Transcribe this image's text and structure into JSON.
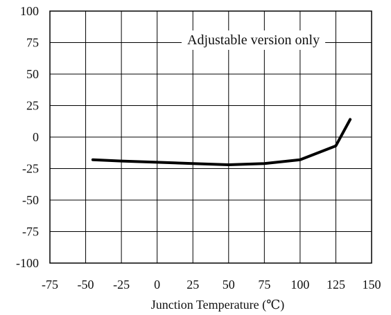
{
  "chart_data": {
    "type": "line",
    "title": "",
    "xlabel": "Junction Temperature (℃)",
    "ylabel": "",
    "xlim": [
      -75,
      150
    ],
    "ylim": [
      -100,
      100
    ],
    "xticks": [
      -75,
      -50,
      -25,
      0,
      25,
      50,
      75,
      100,
      125,
      150
    ],
    "yticks": [
      -100,
      -75,
      -50,
      -25,
      0,
      25,
      50,
      75,
      100
    ],
    "grid": true,
    "annotation": "Adjustable version only",
    "series": [
      {
        "x": [
          -45,
          -25,
          0,
          25,
          50,
          75,
          100,
          125,
          135
        ],
        "y": [
          -18,
          -19,
          -20,
          -21,
          -22,
          -21,
          -18,
          -7,
          14
        ],
        "color": "#000000"
      }
    ]
  }
}
